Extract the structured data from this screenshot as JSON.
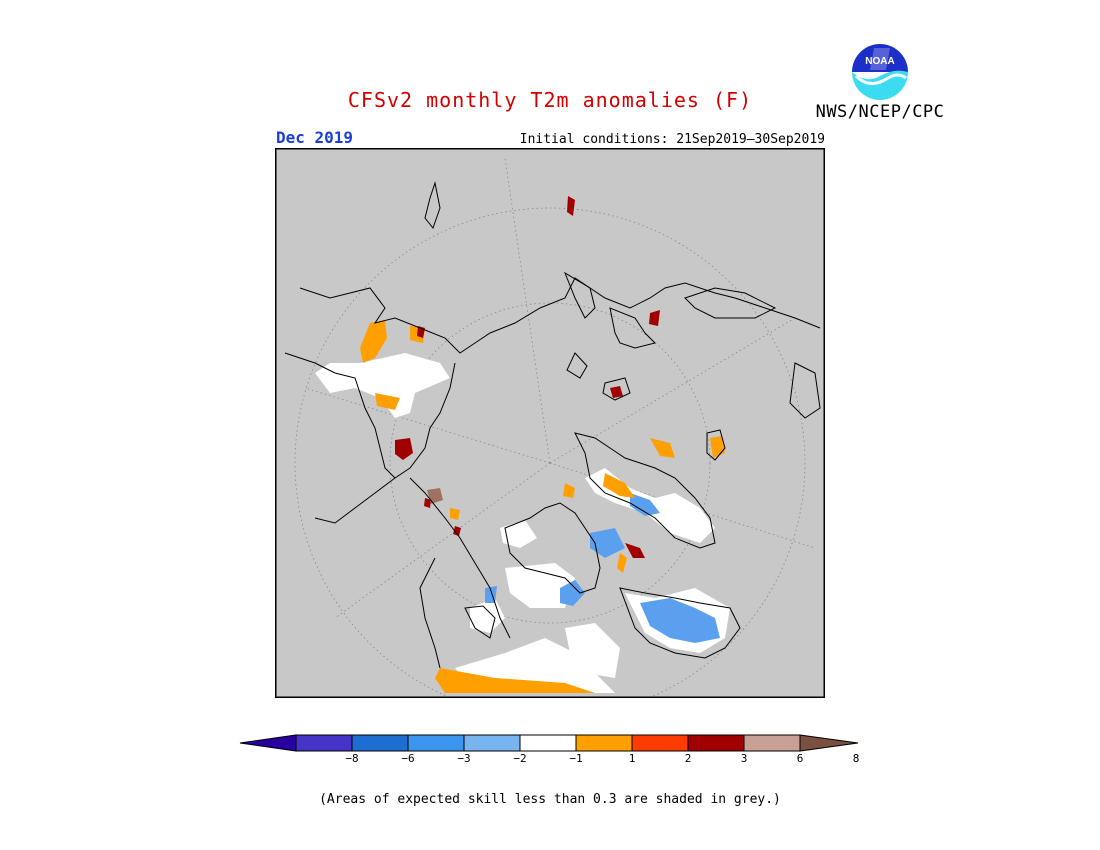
{
  "header": {
    "title": "CFSv2 monthly T2m anomalies (F)",
    "agency": "NWS/NCEP/CPC",
    "month": "Dec 2019",
    "initial_conditions": "Initial conditions: 21Sep2019—30Sep2019"
  },
  "logo": {
    "text": "NOAA",
    "icon": "noaa-logo-icon"
  },
  "colors": {
    "title": "#d40000",
    "month": "#1a3fd6",
    "land_grey": "#c8c8c8",
    "orange": "#ffa000",
    "dark_red": "#a00000",
    "light_blue": "#5aa0ee",
    "brown": "#a07060"
  },
  "colorbar": {
    "ticks": [
      "−8",
      "−6",
      "−3",
      "−2",
      "−1",
      "1",
      "2",
      "3",
      "6",
      "8"
    ],
    "colors": [
      "#2800a0",
      "#4634c8",
      "#1e6ed2",
      "#3c96f0",
      "#78b4f0",
      "#ffffff",
      "#ffa000",
      "#ff3c00",
      "#a00000",
      "#c8a096",
      "#7a5040"
    ]
  },
  "footnote": "(Areas of expected skill less than 0.3 are shaded in grey.)"
}
